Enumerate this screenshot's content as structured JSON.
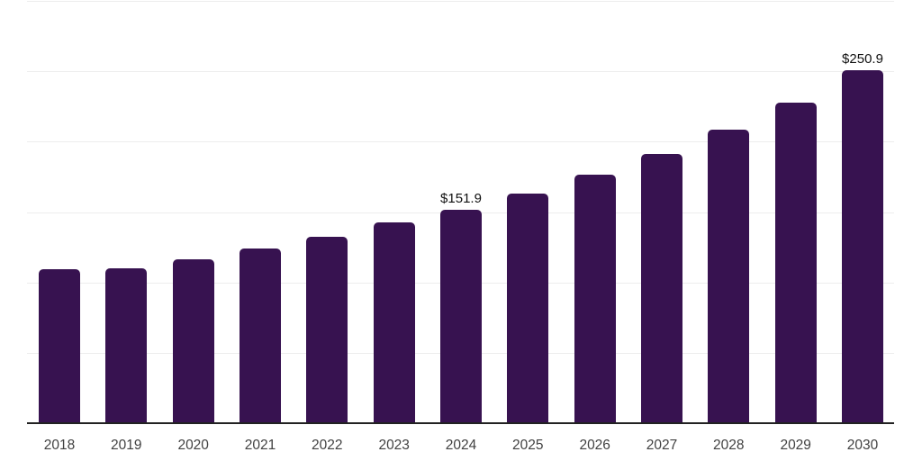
{
  "chart_data": {
    "type": "bar",
    "title": "",
    "xlabel": "",
    "ylabel": "",
    "categories": [
      "2018",
      "2019",
      "2020",
      "2021",
      "2022",
      "2023",
      "2024",
      "2025",
      "2026",
      "2027",
      "2028",
      "2029",
      "2030"
    ],
    "values": [
      109.6,
      110.0,
      116.5,
      124.4,
      132.3,
      142.5,
      151.9,
      163.2,
      176.4,
      191.6,
      208.4,
      227.6,
      250.9
    ],
    "data_labels": [
      null,
      null,
      null,
      null,
      null,
      null,
      "$151.9",
      null,
      null,
      null,
      null,
      null,
      "$250.9"
    ],
    "ylim": [
      0,
      300
    ],
    "gridline_step": 50,
    "grid": "horizontal-only",
    "legend": "none",
    "y_axis_ticks_visible": false
  },
  "colors": {
    "bar": "#371250",
    "grid": "#ededed",
    "axis": "#222222",
    "tick_label": "#414141",
    "value_label": "#111111",
    "background": "#ffffff"
  }
}
